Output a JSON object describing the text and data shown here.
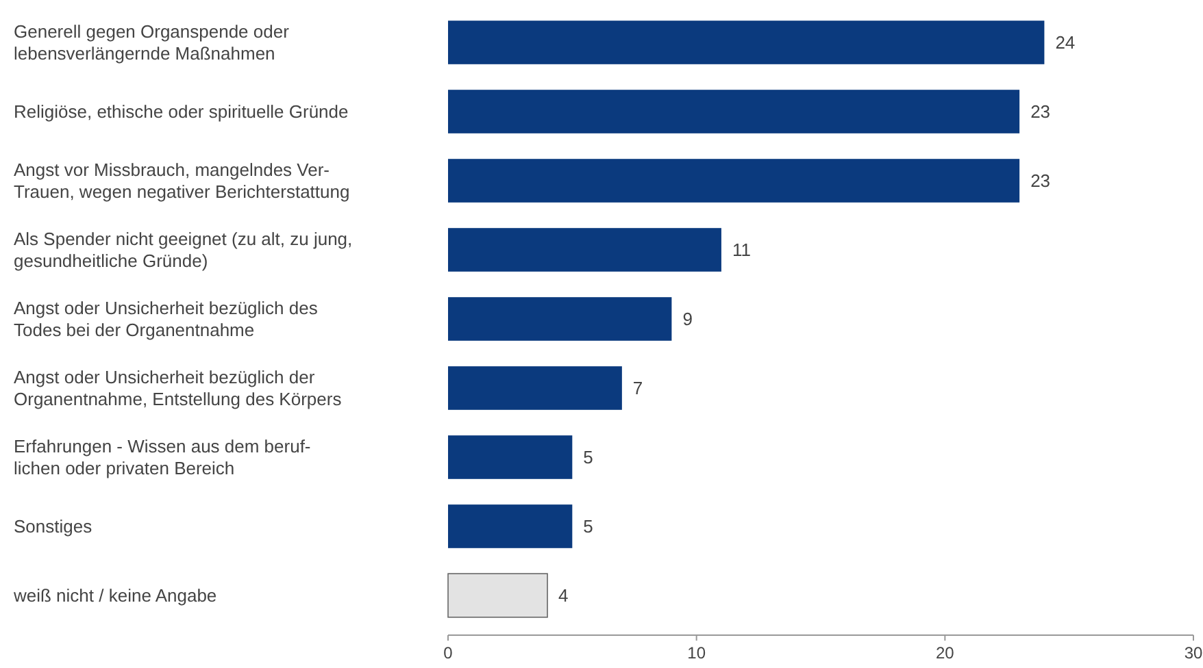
{
  "chart_data": {
    "type": "bar",
    "orientation": "horizontal",
    "categories": [
      "Generell gegen Organspende oder\nlebensverlängernde Maßnahmen",
      "Religiöse, ethische oder spirituelle Gründe",
      "Angst vor Missbrauch, mangelndes Ver-\nTrauen, wegen negativer Berichterstattung",
      "Als Spender nicht geeignet (zu alt, zu jung,\ngesundheitliche Gründe)",
      "Angst oder Unsicherheit bezüglich des\nTodes bei der Organentnahme",
      "Angst oder Unsicherheit bezüglich der\nOrganentnahme, Entstellung des Körpers",
      "Erfahrungen - Wissen aus dem beruf-\nlichen oder privaten Bereich",
      "Sonstiges",
      "weiß nicht / keine Angabe"
    ],
    "values": [
      24,
      23,
      23,
      11,
      9,
      7,
      5,
      5,
      4
    ],
    "colors": [
      "#0b3a7e",
      "#0b3a7e",
      "#0b3a7e",
      "#0b3a7e",
      "#0b3a7e",
      "#0b3a7e",
      "#0b3a7e",
      "#0b3a7e",
      "#e3e3e3"
    ],
    "xlim": [
      0,
      30
    ],
    "xticks": [
      0,
      10,
      20,
      30
    ],
    "data_labels": true
  }
}
